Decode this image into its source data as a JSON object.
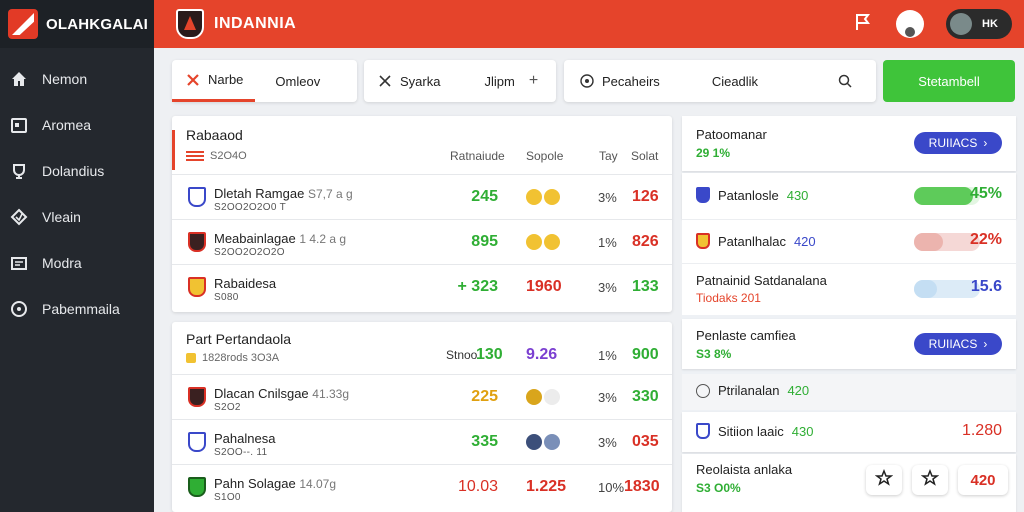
{
  "brand": {
    "name": "OLAHKGALAI"
  },
  "topbar": {
    "title": "INDANNIA",
    "user_label": "HK"
  },
  "sidebar": {
    "items": [
      {
        "label": "Nemon",
        "icon": "home-icon"
      },
      {
        "label": "Aromea",
        "icon": "calendar-icon"
      },
      {
        "label": "Dolandius",
        "icon": "cup-icon"
      },
      {
        "label": "Vleain",
        "icon": "shield-icon"
      },
      {
        "label": "Modra",
        "icon": "board-icon"
      },
      {
        "label": "Pabemmaila",
        "icon": "circle-icon"
      }
    ]
  },
  "filters": {
    "group1": {
      "tab1": "Narbe",
      "tab2": "Omleov"
    },
    "group2": {
      "tab1": "Syarka",
      "tab2": "Jlipm"
    },
    "group3": {
      "tab1": "Pecaheirs",
      "tab2": "Cieadlik"
    },
    "cta": "Stetambell"
  },
  "colors": {
    "accent_red": "#e5442b",
    "green": "#3fc43a",
    "blue": "#3a48c9"
  },
  "card1": {
    "title": "Rabaaod",
    "sub": "S2O4O",
    "cols": [
      "Ratnaiude",
      "Sopole",
      "Tay",
      "Solat"
    ],
    "rows": [
      {
        "name": "Dletah Ramgae",
        "extra": "S7,7 a g",
        "meta": "S2OO2O2O0 T",
        "v1": "245",
        "pct": "3%",
        "v4": "126"
      },
      {
        "name": "Meabainlagae",
        "extra": "1 4.2 a g",
        "meta": "S2OO2O2O2O",
        "v1": "895",
        "pct": "1%",
        "v4": "826"
      },
      {
        "name": "Rabaidesa",
        "meta": "S080",
        "v1": "+ 323",
        "v2": "1960",
        "pct": "3%",
        "v4": "133"
      }
    ]
  },
  "card2": {
    "title": "Part Pertandaola",
    "sub": "1828rods 3O3A",
    "header_vals": {
      "label": "Stnoo",
      "v1": "130",
      "v2": "9.26",
      "pct": "1%",
      "v4": "900"
    },
    "rows": [
      {
        "name": "Dlacan Cnilsgae",
        "extra": "41.33g",
        "meta": "S2O2",
        "v1": "225",
        "pct": "3%",
        "v4": "330"
      },
      {
        "name": "Pahalnesa",
        "meta": "S2OO--. 11",
        "v1": "335",
        "pct": "3%",
        "v4": "035"
      },
      {
        "name": "Pahn Solagae",
        "extra": "14.07g",
        "meta": "S1O0",
        "v1": "10.03",
        "v2": "1.225",
        "pct": "10%",
        "v4": "1830"
      }
    ]
  },
  "panel": {
    "b1": {
      "title": "Patoomanar",
      "green": "29 1%",
      "btn": "RUIIACS"
    },
    "r1": {
      "label": "Patanlosle",
      "inline": "430",
      "value": "45%",
      "level": 0.45
    },
    "r2": {
      "label": "Patanlhalac",
      "inline": "420",
      "value": "22%",
      "level": 0.22
    },
    "b2": {
      "title": "Patnainid Satdanalana",
      "sub": "Tiodaks 201",
      "value": "15.6",
      "level": 0.15
    },
    "b3": {
      "title": "Penlaste camfiea",
      "green": "S3 8%",
      "btn": "RUIIACS"
    },
    "r3": {
      "label": "Ptrilanalan",
      "inline": "420"
    },
    "r4": {
      "label": "Sitiion laaic",
      "inline": "430",
      "value": "1.280"
    },
    "b4": {
      "title": "Reolaista anlaka",
      "green": "S3 O0%",
      "value": "420"
    }
  }
}
